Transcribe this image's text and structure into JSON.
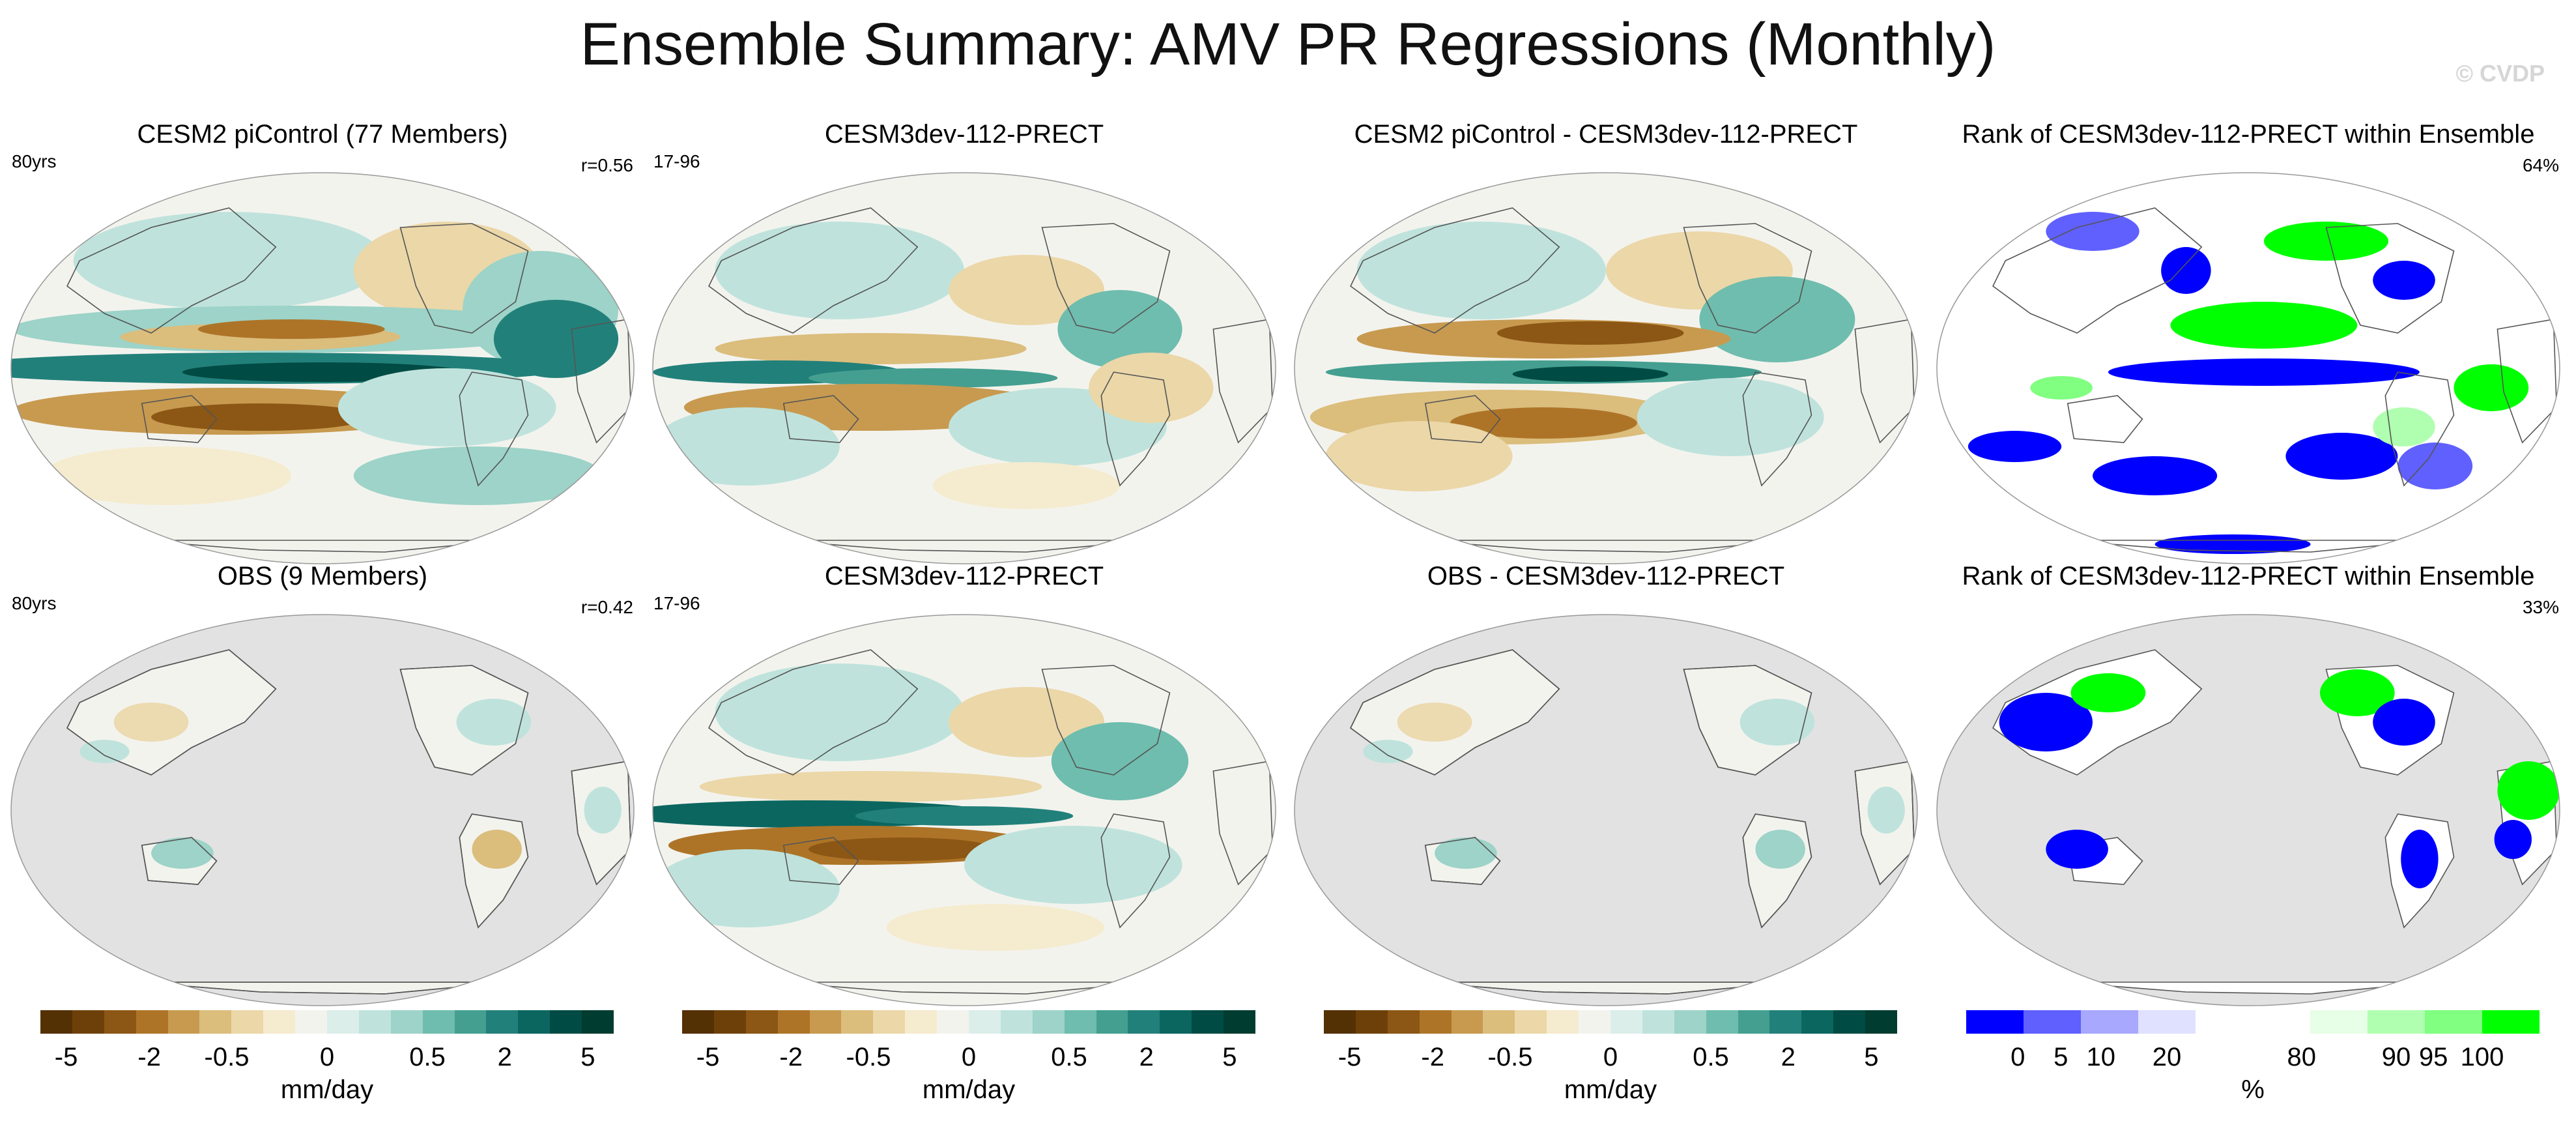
{
  "title": "Ensemble Summary: AMV PR Regressions (Monthly)",
  "watermark": "© CVDP",
  "panels": [
    {
      "title": "CESM2 piControl (77 Members)",
      "left_note": "80yrs",
      "right_note": "r=0.56",
      "map_style": "model_mean"
    },
    {
      "title": "CESM3dev-112-PRECT",
      "left_note": "17-96",
      "right_note": "",
      "map_style": "model_single"
    },
    {
      "title": "CESM2 piControl - CESM3dev-112-PRECT",
      "left_note": "",
      "right_note": "",
      "map_style": "diff"
    },
    {
      "title": "Rank of CESM3dev-112-PRECT within Ensemble",
      "left_note": "",
      "right_note": "64%",
      "map_style": "rank_global"
    },
    {
      "title": "OBS (9 Members)",
      "left_note": "80yrs",
      "right_note": "r=0.42",
      "map_style": "obs"
    },
    {
      "title": "CESM3dev-112-PRECT",
      "left_note": "17-96",
      "right_note": "",
      "map_style": "model_single2"
    },
    {
      "title": "OBS - CESM3dev-112-PRECT",
      "left_note": "",
      "right_note": "",
      "map_style": "obs_diff"
    },
    {
      "title": "Rank of CESM3dev-112-PRECT within Ensemble",
      "left_note": "",
      "right_note": "33%",
      "map_style": "rank_land"
    }
  ],
  "colorbars": [
    {
      "label": "mm/day",
      "ticks": [
        "-5",
        "-2",
        "-0.5",
        "0",
        "0.5",
        "2",
        "5"
      ],
      "kind": "brbg"
    },
    {
      "label": "mm/day",
      "ticks": [
        "-5",
        "-2",
        "-0.5",
        "0",
        "0.5",
        "2",
        "5"
      ],
      "kind": "brbg"
    },
    {
      "label": "mm/day",
      "ticks": [
        "-5",
        "-2",
        "-0.5",
        "0",
        "0.5",
        "2",
        "5"
      ],
      "kind": "brbg"
    },
    {
      "label": "%",
      "ticks": [
        "0",
        "5",
        "10",
        "20",
        "80",
        "90",
        "95",
        "100"
      ],
      "kind": "rank"
    }
  ],
  "colors": {
    "brbg": [
      "#543005",
      "#6d400a",
      "#8c5614",
      "#ad7428",
      "#c79a50",
      "#dbbd7c",
      "#ebd7a8",
      "#f5ebcf",
      "#f3f3ee",
      "#dbeeea",
      "#bfe3dc",
      "#9dd3c8",
      "#6fbdae",
      "#449f90",
      "#22807a",
      "#0b6660",
      "#004b44",
      "#003c30"
    ],
    "rank": [
      "#0000ff",
      "#6060ff",
      "#a8a8ff",
      "#e0e0ff",
      "#ffffff",
      "#ffffff",
      "#e6ffe6",
      "#b0ffb0",
      "#80ff80",
      "#00ff00"
    ],
    "land_gray": "#e2e2e2",
    "ocean_white": "#ffffff"
  }
}
